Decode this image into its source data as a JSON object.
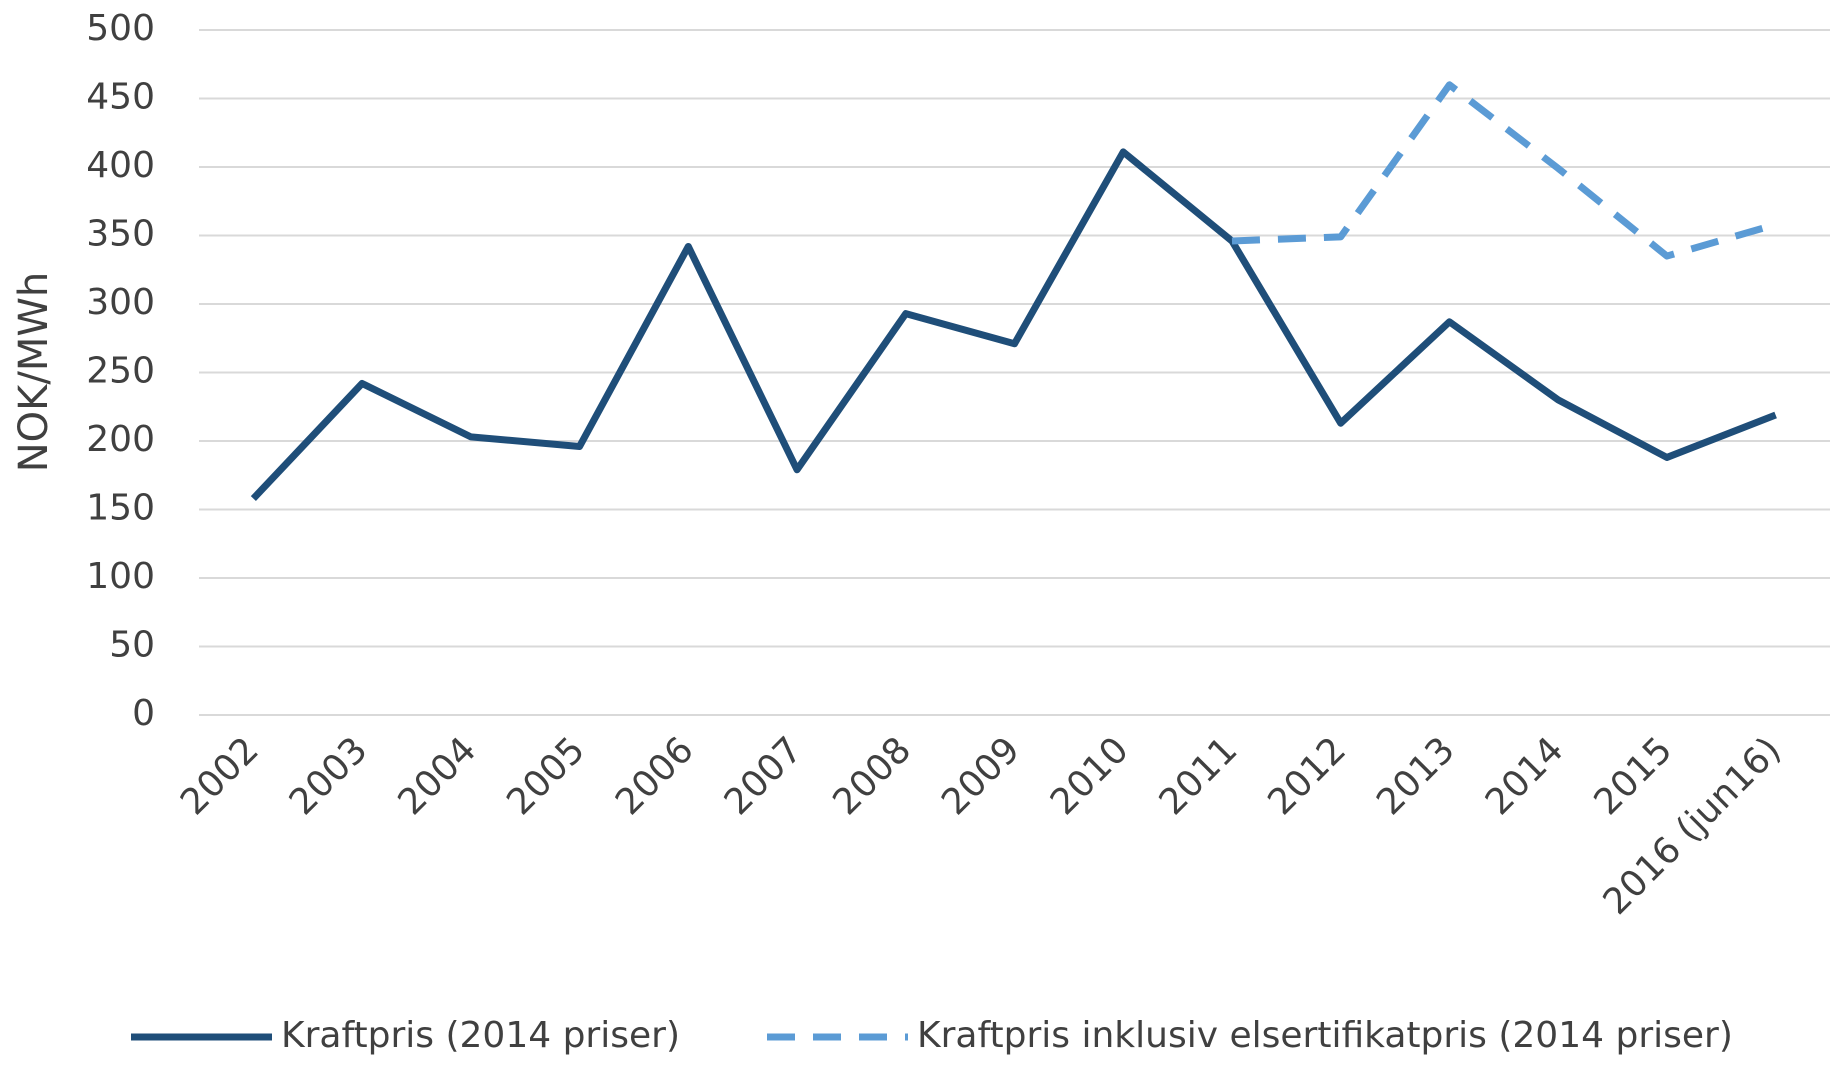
{
  "chart_data": {
    "type": "line",
    "y_label": "NOK/MWh",
    "categories": [
      "2002",
      "2003",
      "2004",
      "2005",
      "2006",
      "2007",
      "2008",
      "2009",
      "2010",
      "2011",
      "2012",
      "2013",
      "2014",
      "2015",
      "2016 (jun16)"
    ],
    "series": [
      {
        "name": "Kraftpris (2014 priser)",
        "color": "#1f4e79",
        "dashed": false,
        "values": [
          158,
          242,
          203,
          196,
          342,
          179,
          293,
          271,
          411,
          346,
          213,
          287,
          230,
          188,
          219
        ]
      },
      {
        "name": "Kraftpris inklusiv elsertifikatpris (2014 priser)",
        "color": "#5b9bd5",
        "dashed": true,
        "values": [
          null,
          null,
          null,
          null,
          null,
          null,
          null,
          null,
          null,
          346,
          349,
          460,
          399,
          335,
          358
        ]
      }
    ],
    "ylim": [
      0,
      500
    ],
    "yticks": [
      0,
      50,
      100,
      150,
      200,
      250,
      300,
      350,
      400,
      450,
      500
    ],
    "grid": true,
    "legend": "bottom"
  }
}
